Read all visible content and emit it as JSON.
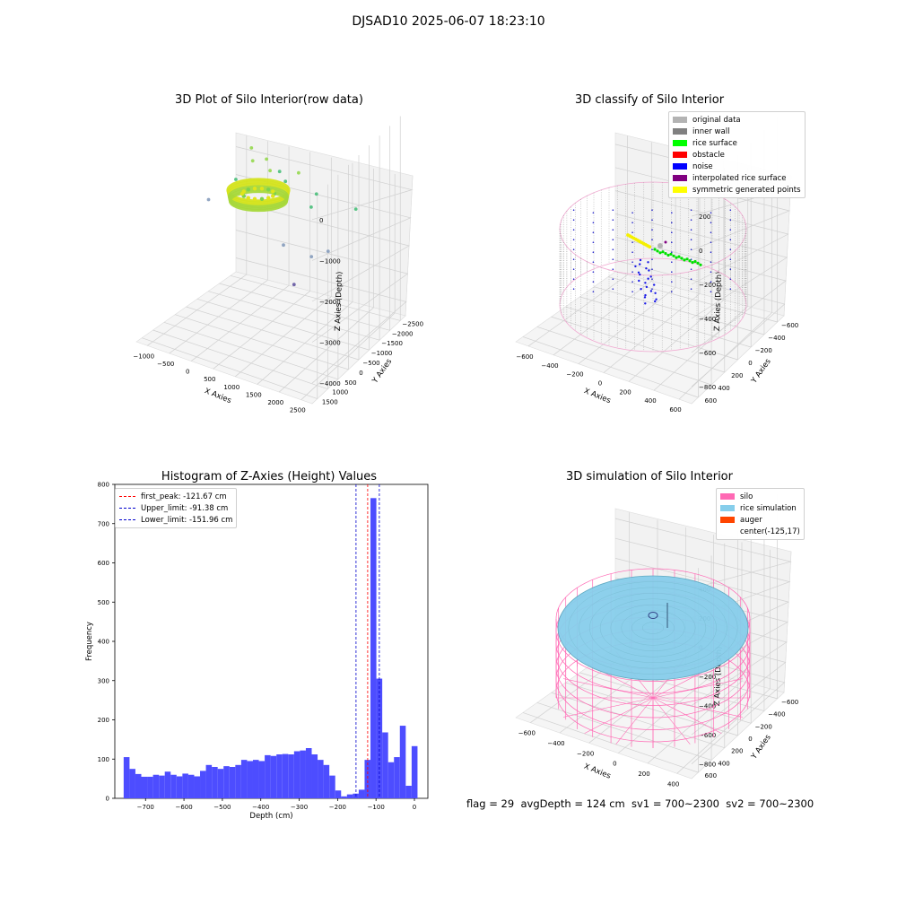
{
  "figure": {
    "suptitle": "DJSAD10 2025-06-07 18:23:10",
    "bottom_status": "flag = 29  avgDepth = 124 cm  sv1 = 700~2300  sv2 = 700~2300"
  },
  "colors": {
    "original": "#b3b3b3",
    "inner_wall": "#808080",
    "rice_surface": "#00ff00",
    "obstacle": "#ff0000",
    "noise": "#0000ff",
    "interpolated": "#800080",
    "symmetric": "#ffff00",
    "silo": "#ff69b4",
    "rice_sim": "#87ceeb",
    "auger": "#ff4500",
    "hist_bar": "#4d4dff"
  },
  "chart_data": [
    {
      "type": "scatter",
      "projection": "3d",
      "title": "3D Plot of Silo Interior(row data)",
      "xlabel": "X Axies",
      "ylabel": "Y Axies",
      "zlabel": "Z Axies (Depth)",
      "x_ticks": [
        "−1000",
        "−500",
        "0",
        "500",
        "1000",
        "1500",
        "2000",
        "2500"
      ],
      "y_ticks": [
        "−2500",
        "−2000",
        "−1500",
        "−1000",
        "−500",
        "0",
        "500",
        "1000",
        "1500"
      ],
      "z_ticks": [
        "0",
        "−1000",
        "−2000",
        "−3000",
        "−4000"
      ],
      "xlim": [
        -1300,
        2800
      ],
      "ylim": [
        -2700,
        1700
      ],
      "zlim": [
        -4600,
        300
      ],
      "colormap": "viridis (by depth)",
      "points": [
        {
          "x": -1200,
          "y": 300,
          "z": -2300
        },
        {
          "x": 2500,
          "y": -200,
          "z": -1000
        },
        {
          "x": 900,
          "y": 100,
          "z": -3500
        },
        {
          "x": 1200,
          "y": 300,
          "z": -2800
        },
        {
          "x": 600,
          "y": 200,
          "z": -2700
        },
        {
          "x": 1800,
          "y": -100,
          "z": -2300
        },
        {
          "x": 1000,
          "y": 900,
          "z": -1600
        },
        {
          "x": 300,
          "y": 600,
          "z": -1200
        },
        {
          "x": 100,
          "y": 400,
          "z": -900
        },
        {
          "x": -200,
          "y": 300,
          "z": -700
        },
        {
          "x": 500,
          "y": -200,
          "z": -800
        },
        {
          "x": 700,
          "y": 100,
          "z": -1100
        },
        {
          "x": 900,
          "y": 300,
          "z": -900
        },
        {
          "x": 200,
          "y": -400,
          "z": -600
        },
        {
          "x": 1300,
          "y": 100,
          "z": -1500
        },
        {
          "x": -300,
          "y": -200,
          "z": -1300
        }
      ]
    },
    {
      "type": "scatter",
      "projection": "3d",
      "title": "3D classify of Silo Interior",
      "xlabel": "X Axies",
      "ylabel": "Y Axies",
      "zlabel": "Z Axies (Depth)",
      "x_ticks": [
        "−600",
        "−400",
        "−200",
        "0",
        "200",
        "400",
        "600"
      ],
      "y_ticks": [
        "−600",
        "−400",
        "−200",
        "0",
        "200",
        "400",
        "600"
      ],
      "z_ticks": [
        "200",
        "0",
        "−200",
        "−400",
        "−600",
        "−800"
      ],
      "xlim": [
        -700,
        700
      ],
      "ylim": [
        -700,
        700
      ],
      "zlim": [
        -900,
        300
      ],
      "legend_position": "top-right",
      "series": [
        {
          "name": "original data",
          "color": "#b3b3b3"
        },
        {
          "name": "inner wall",
          "color": "#808080"
        },
        {
          "name": "rice surface",
          "color": "#00ff00"
        },
        {
          "name": "obstacle",
          "color": "#ff0000"
        },
        {
          "name": "noise",
          "color": "#0000ff"
        },
        {
          "name": "interpolated rice surface",
          "color": "#800080"
        },
        {
          "name": "symmetric generated points",
          "color": "#ffff00"
        }
      ]
    },
    {
      "type": "bar",
      "title": "Histogram of Z-Axies (Height) Values",
      "xlabel": "Depth (cm)",
      "ylabel": "Frequency",
      "xlim": [
        -780,
        35
      ],
      "ylim": [
        0,
        800
      ],
      "x_ticks": [
        "−700",
        "−600",
        "−500",
        "−400",
        "−300",
        "−200",
        "−100",
        "0"
      ],
      "x_tick_values": [
        -700,
        -600,
        -500,
        -400,
        -300,
        -200,
        -100,
        0
      ],
      "y_ticks": [
        "0",
        "100",
        "200",
        "300",
        "400",
        "500",
        "600",
        "700",
        "800"
      ],
      "y_tick_values": [
        0,
        100,
        200,
        300,
        400,
        500,
        600,
        700,
        800
      ],
      "bin_start": -757,
      "bin_width": 15.3,
      "values": [
        105,
        75,
        62,
        55,
        55,
        60,
        58,
        68,
        60,
        56,
        63,
        60,
        56,
        70,
        85,
        80,
        75,
        82,
        80,
        85,
        98,
        95,
        98,
        95,
        110,
        108,
        112,
        113,
        112,
        120,
        122,
        128,
        112,
        98,
        85,
        58,
        20,
        5,
        10,
        12,
        22,
        98,
        765,
        305,
        168,
        92,
        105,
        185,
        32,
        133
      ],
      "lines": [
        {
          "name": "first_peak: -121.67 cm",
          "x": -121.67,
          "color": "#ff0000"
        },
        {
          "name": "Upper_limit: -91.38 cm",
          "x": -91.38,
          "color": "#0000cc"
        },
        {
          "name": "Lower_limit: -151.96 cm",
          "x": -151.96,
          "color": "#0000cc"
        }
      ],
      "legend_position": "top-left"
    },
    {
      "type": "area",
      "projection": "3d",
      "title": "3D simulation of Silo Interior",
      "xlabel": "X Axies",
      "ylabel": "Y Axies",
      "zlabel": "Z Axies (Depth)",
      "x_ticks": [
        "−600",
        "−400",
        "−200",
        "0",
        "200",
        "400"
      ],
      "y_ticks": [
        "−600",
        "−400",
        "−200",
        "0",
        "200",
        "400",
        "600"
      ],
      "z_ticks": [
        "400",
        "200",
        "0",
        "−200",
        "−400",
        "−600",
        "−800"
      ],
      "xlim": [
        -700,
        600
      ],
      "ylim": [
        -700,
        700
      ],
      "zlim": [
        -900,
        500
      ],
      "legend_position": "top-right",
      "series": [
        {
          "name": "silo",
          "color": "#ff69b4"
        },
        {
          "name": "rice simulation",
          "color": "#87ceeb"
        },
        {
          "name": "auger",
          "color": "#ff4500"
        },
        {
          "name": "center(-125,17)",
          "color": ""
        }
      ]
    }
  ]
}
